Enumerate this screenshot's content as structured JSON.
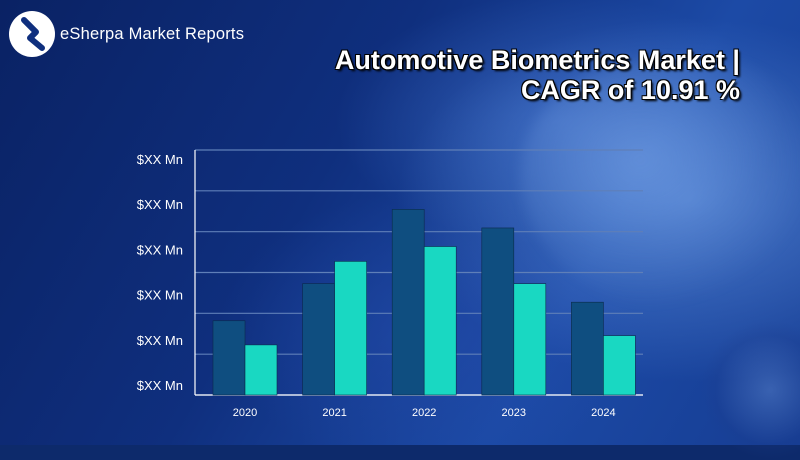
{
  "brand": {
    "name": "eSherpa Market Reports"
  },
  "colors": {
    "series_dark": "#0f4e80",
    "series_light": "#19d8c2",
    "grid": "#5f7fb8"
  },
  "chart_data": {
    "type": "bar",
    "title": "Automotive Biometrics Market | CAGR of 10.91 %",
    "categories": [
      "2020",
      "2021",
      "2022",
      "2023",
      "2024"
    ],
    "series": [
      {
        "values": [
          2.0,
          3.0,
          5.0,
          4.5,
          2.5
        ]
      },
      {
        "values": [
          1.35,
          3.6,
          4.0,
          3.0,
          1.6
        ]
      }
    ],
    "yticks": [
      "$XX Mn",
      "$XX Mn",
      "$XX Mn",
      "$XX Mn",
      "$XX Mn",
      "$XX Mn"
    ],
    "ylim": [
      0,
      6.6
    ],
    "grid": true,
    "legend": "none"
  }
}
